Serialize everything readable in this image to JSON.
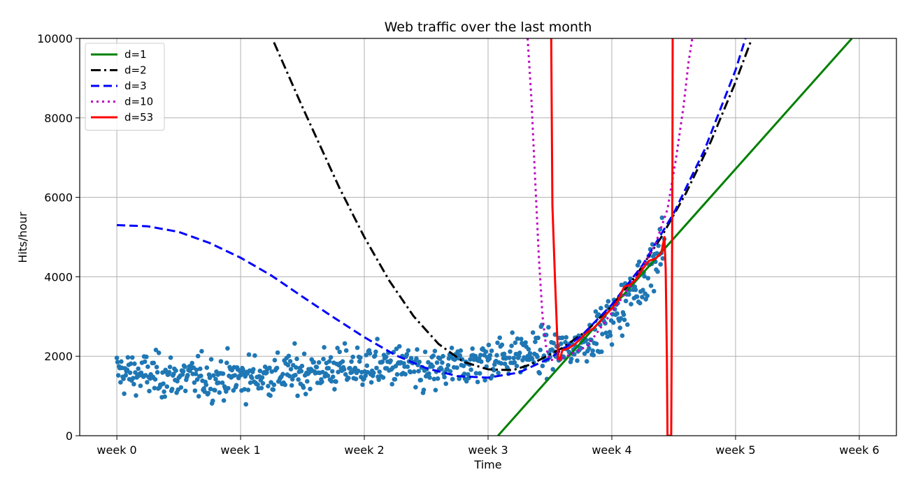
{
  "chart_data": {
    "type": "scatter",
    "title": "Web traffic over the last month",
    "xlabel": "Time",
    "ylabel": "Hits/hour",
    "xlim": [
      -0.3,
      6.3
    ],
    "ylim": [
      0,
      10000
    ],
    "x_ticks": [
      0,
      1,
      2,
      3,
      4,
      5,
      6
    ],
    "x_tick_labels": [
      "week 0",
      "week 1",
      "week 2",
      "week 3",
      "week 4",
      "week 5",
      "week 6"
    ],
    "y_ticks": [
      0,
      2000,
      4000,
      6000,
      8000,
      10000
    ],
    "y_tick_labels": [
      "0",
      "2000",
      "4000",
      "6000",
      "8000",
      "10000"
    ],
    "grid": true,
    "legend_position": "top-left",
    "scatter_color": "#1f77b4",
    "scatter_description": "about 740 hourly observations: ~1500 hits/hour weeks 0-2.5, rising to ~2000 by week 3.5, then sharply to ~5000-6000 near week 4.4",
    "series": [
      {
        "name": "d=1",
        "color": "#008000",
        "dash": "solid",
        "x": [
          3.08,
          5.94
        ],
        "y": [
          0,
          10000
        ]
      },
      {
        "name": "d=2",
        "color": "#000000",
        "dash": "dashdot",
        "x": [
          1.27,
          1.5,
          1.8,
          2.0,
          2.2,
          2.4,
          2.6,
          2.8,
          3.0,
          3.2,
          3.35,
          3.6,
          3.8,
          4.0,
          4.2,
          4.4,
          4.6,
          4.8,
          5.0,
          5.12
        ],
        "y": [
          9900,
          8270,
          6230,
          5000,
          3910,
          3000,
          2310,
          1860,
          1670,
          1650,
          1800,
          2210,
          2650,
          3270,
          4050,
          5000,
          6110,
          7400,
          8900,
          9900
        ]
      },
      {
        "name": "d=3",
        "color": "#0000ff",
        "dash": "dashed",
        "x": [
          0,
          0.25,
          0.5,
          0.75,
          1.0,
          1.25,
          1.5,
          1.75,
          2.0,
          2.25,
          2.5,
          2.75,
          3.0,
          3.25,
          3.5,
          3.75,
          4.0,
          4.25,
          4.5,
          4.75,
          5.0,
          5.08
        ],
        "y": [
          5300,
          5270,
          5130,
          4850,
          4480,
          4030,
          3500,
          2980,
          2480,
          2030,
          1700,
          1500,
          1460,
          1590,
          1950,
          2500,
          3300,
          4300,
          5600,
          7200,
          9200,
          10000
        ]
      },
      {
        "name": "d=10",
        "color": "#bf00bf",
        "dash": "dotted",
        "x": [
          3.32,
          3.35,
          3.38,
          3.41,
          3.44,
          3.47,
          3.5,
          3.6,
          3.8,
          4.0,
          4.2,
          4.35,
          4.45,
          4.52,
          4.58,
          4.62,
          4.65
        ],
        "y": [
          10000,
          8500,
          6500,
          4500,
          3000,
          2200,
          1900,
          1950,
          2250,
          3100,
          4000,
          4800,
          5700,
          7000,
          8300,
          9400,
          10000
        ]
      },
      {
        "name": "d=53",
        "color": "#ff0000",
        "dash": "solid",
        "x": [
          3.51,
          3.515,
          3.52,
          3.54,
          3.565,
          3.58,
          3.6,
          3.65,
          3.7,
          3.75,
          3.8,
          3.85,
          3.9,
          3.95,
          4.0,
          4.05,
          4.1,
          4.15,
          4.2,
          4.25,
          4.3,
          4.35,
          4.4,
          4.425,
          4.435,
          4.445,
          4.45,
          4.48,
          4.485,
          4.49,
          4.492
        ],
        "y": [
          10000,
          8000,
          5800,
          4000,
          2000,
          1900,
          2150,
          2200,
          2300,
          2450,
          2600,
          2700,
          2850,
          3050,
          3200,
          3400,
          3750,
          3800,
          3950,
          4200,
          4400,
          4450,
          4600,
          5000,
          4200,
          2000,
          0,
          0,
          3000,
          7000,
          10000
        ]
      }
    ]
  }
}
